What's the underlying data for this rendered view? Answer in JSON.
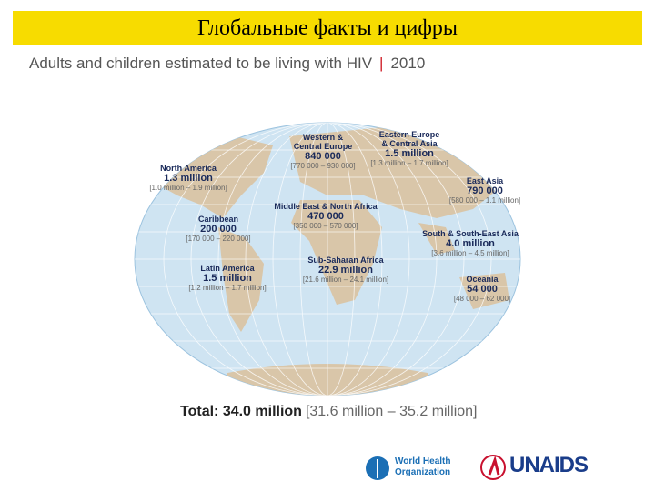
{
  "header": {
    "title": "Глобальные факты и цифры"
  },
  "subtitle": {
    "text": "Adults and children estimated to be living with HIV",
    "separator": "|",
    "year": "2010"
  },
  "regions": [
    {
      "name": [
        "North America"
      ],
      "value": "1.3 million",
      "range": "[1.0 million – 1.9 million]"
    },
    {
      "name": [
        "Western &",
        "Central Europe"
      ],
      "value": "840 000",
      "range": "[770 000 – 930 000]"
    },
    {
      "name": [
        "Eastern Europe",
        "& Central Asia"
      ],
      "value": "1.5 million",
      "range": "[1.3 million – 1.7 million]"
    },
    {
      "name": [
        "East Asia"
      ],
      "value": "790 000",
      "range": "[580 000 – 1.1 million]"
    },
    {
      "name": [
        "Caribbean"
      ],
      "value": "200 000",
      "range": "[170 000 – 220 000]"
    },
    {
      "name": [
        "Middle East & North Africa"
      ],
      "value": "470 000",
      "range": "[350 000 – 570 000]"
    },
    {
      "name": [
        "South & South-East Asia"
      ],
      "value": "4.0 million",
      "range": "[3.6 million – 4.5 million]"
    },
    {
      "name": [
        "Latin America"
      ],
      "value": "1.5 million",
      "range": "[1.2 million – 1.7 million]"
    },
    {
      "name": [
        "Sub-Saharan Africa"
      ],
      "value": "22.9 million",
      "range": "[21.6 million – 24.1 million]"
    },
    {
      "name": [
        "Oceania"
      ],
      "value": "54 000",
      "range": "[48 000 – 62 000]"
    }
  ],
  "total": {
    "label": "Total:",
    "value": "34.0 million",
    "range": "[31.6 million – 35.2 million]"
  },
  "logos": {
    "who": [
      "World Health",
      "Organization"
    ],
    "unaids": "UNAIDS"
  }
}
